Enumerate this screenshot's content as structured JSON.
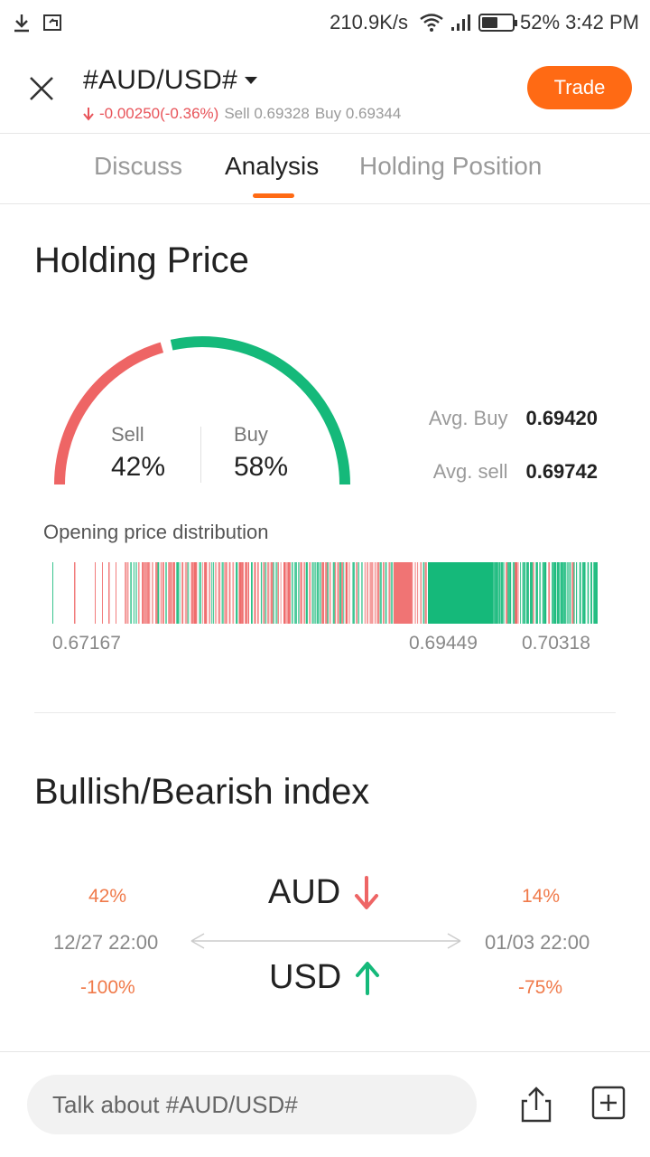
{
  "status": {
    "speed": "210.9K/s",
    "battery": "52%",
    "battery_level": 0.52,
    "time": "3:42 PM",
    "icons": [
      "download-icon",
      "screenshot-icon",
      "wifi-icon",
      "signal-icon",
      "battery-icon"
    ]
  },
  "header": {
    "symbol": "#AUD/USD#",
    "change": "-0.00250(-0.36%)",
    "sell_quote": "Sell 0.69328",
    "buy_quote": "Buy 0.69344",
    "trade_label": "Trade",
    "colors": {
      "accent": "#ff6a14",
      "down": "#e8545a"
    }
  },
  "tabs": [
    {
      "label": "Discuss",
      "active": false
    },
    {
      "label": "Analysis",
      "active": true
    },
    {
      "label": "Holding Position",
      "active": false
    }
  ],
  "holding": {
    "title": "Holding Price",
    "sell_label": "Sell",
    "sell_pct": "42%",
    "sell_fraction": 0.42,
    "buy_label": "Buy",
    "buy_pct": "58%",
    "buy_fraction": 0.58,
    "avg_buy_label": "Avg. Buy",
    "avg_buy_value": "0.69420",
    "avg_sell_label": "Avg. sell",
    "avg_sell_value": "0.69742",
    "colors": {
      "sell": "#ee6565",
      "buy": "#15b97a"
    }
  },
  "distribution": {
    "label": "Opening price distribution",
    "ticks": [
      "0.67167",
      "0.69449",
      "0.70318"
    ],
    "range": [
      0.67167,
      0.70318
    ]
  },
  "bullbear": {
    "title": "Bullish/Bearish index",
    "left_top_pct": "42%",
    "left_date": "12/27 22:00",
    "left_bottom_pct": "-100%",
    "right_top_pct": "14%",
    "right_date": "01/03 22:00",
    "right_bottom_pct": "-75%",
    "top_currency": "AUD",
    "top_direction": "down",
    "bottom_currency": "USD",
    "bottom_direction": "up"
  },
  "bottom": {
    "placeholder": "Talk about #AUD/USD#"
  }
}
